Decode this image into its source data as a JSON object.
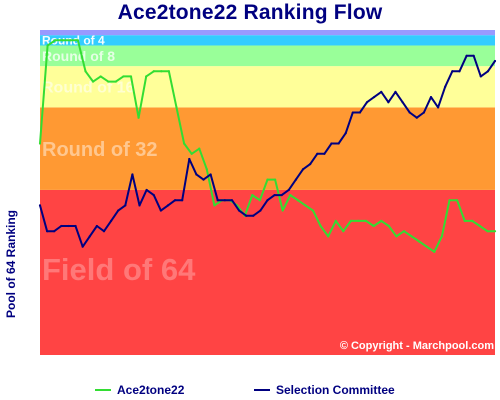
{
  "chart_data": {
    "type": "line",
    "title": "Ace2tone22 Ranking Flow",
    "ylabel": "Pool of 64 Ranking",
    "bands": [
      {
        "label": "Field of 64",
        "from": 64,
        "to": 32,
        "color": "#ff4444"
      },
      {
        "label": "Round of 32",
        "from": 32,
        "to": 16,
        "color": "#ff9933"
      },
      {
        "label": "Round of 16",
        "from": 16,
        "to": 8,
        "color": "#ffff99"
      },
      {
        "label": "Round of 8",
        "from": 8,
        "to": 4,
        "color": "#99ff99"
      },
      {
        "label": "Round of 4",
        "from": 4,
        "to": 2,
        "color": "#33ccff"
      },
      {
        "label": "",
        "from": 2,
        "to": 1,
        "color": "#9999ff"
      }
    ],
    "y_inverted": true,
    "ylim": [
      1,
      64
    ],
    "grid": false,
    "legend_position": "bottom",
    "copyright": "© Copyright - Marchpool.com",
    "series": [
      {
        "name": "Ace2tone22",
        "color": "#33dd33",
        "values": [
          23,
          4,
          3,
          3,
          3,
          3,
          9,
          11,
          10,
          11,
          11,
          10,
          10,
          18,
          10,
          9,
          9,
          9,
          16,
          23,
          25,
          24,
          28,
          35,
          34,
          34,
          35,
          37,
          33,
          34,
          30,
          30,
          36,
          33,
          34,
          35,
          36,
          39,
          41,
          38,
          40,
          38,
          38,
          38,
          39,
          38,
          39,
          41,
          40,
          41,
          42,
          43,
          44,
          41,
          34,
          34,
          38,
          38,
          39,
          40,
          40
        ]
      },
      {
        "name": "Selection Committee",
        "color": "#000080",
        "values": [
          35,
          40,
          40,
          39,
          39,
          39,
          43,
          41,
          39,
          40,
          38,
          36,
          35,
          29,
          35,
          32,
          33,
          36,
          35,
          34,
          34,
          26,
          29,
          30,
          29,
          34,
          34,
          34,
          36,
          37,
          37,
          36,
          34,
          33,
          33,
          32,
          30,
          28,
          27,
          25,
          25,
          23,
          23,
          21,
          17,
          17,
          15,
          14,
          13,
          15,
          13,
          15,
          17,
          18,
          17,
          14,
          16,
          12,
          9,
          9,
          6,
          6,
          10,
          9,
          7
        ]
      }
    ]
  }
}
